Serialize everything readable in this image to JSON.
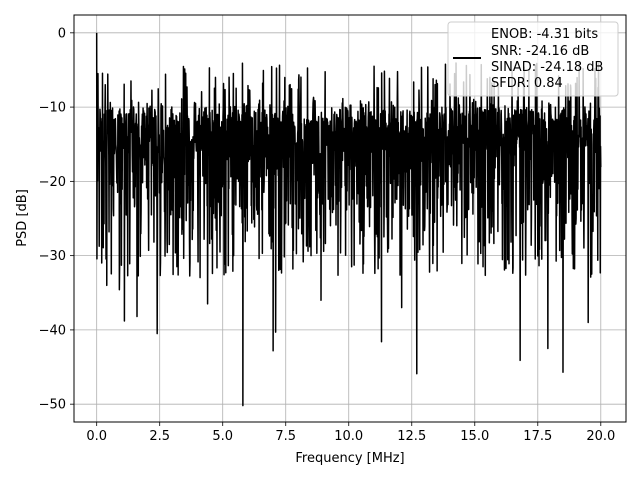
{
  "chart_data": {
    "type": "line",
    "xlabel": "Frequency [MHz]",
    "ylabel": "PSD [dB]",
    "xlim": [
      -0.9,
      21.0
    ],
    "ylim": [
      -52.4,
      2.4
    ],
    "xticks": [
      0.0,
      2.5,
      5.0,
      7.5,
      10.0,
      12.5,
      15.0,
      17.5,
      20.0
    ],
    "xtick_labels": [
      "0.0",
      "2.5",
      "5.0",
      "7.5",
      "10.0",
      "12.5",
      "15.0",
      "17.5",
      "20.0"
    ],
    "yticks": [
      0,
      -10,
      -20,
      -30,
      -40,
      -50
    ],
    "ytick_labels": [
      "0",
      "−10",
      "−20",
      "−30",
      "−40",
      "−50"
    ],
    "grid": true,
    "legend_position": "upper-right",
    "legend_entries": [
      "ENOB: -4.31 bits",
      "SNR: -24.16 dB",
      "SINAD: -24.18 dB",
      "SFDR: 0.84"
    ],
    "series": [
      {
        "color": "#000000",
        "x_range": [
          0.0,
          20.0
        ],
        "notable_points": [
          {
            "x": 0.0,
            "y": 0.0
          },
          {
            "x": 0.05,
            "y": -5.5
          },
          {
            "x": 0.08,
            "y": -17.0
          },
          {
            "x": 0.2,
            "y": -31.0
          },
          {
            "x": 0.4,
            "y": -34.0
          },
          {
            "x": 0.9,
            "y": -34.6
          },
          {
            "x": 1.1,
            "y": -38.8
          },
          {
            "x": 1.6,
            "y": -38.2
          },
          {
            "x": 2.4,
            "y": -40.5
          },
          {
            "x": 4.4,
            "y": -36.5
          },
          {
            "x": 5.8,
            "y": -50.2
          },
          {
            "x": 7.0,
            "y": -42.8
          },
          {
            "x": 7.1,
            "y": -40.3
          },
          {
            "x": 8.9,
            "y": -36.0
          },
          {
            "x": 11.3,
            "y": -41.6
          },
          {
            "x": 12.1,
            "y": -37.0
          },
          {
            "x": 12.7,
            "y": -45.9
          },
          {
            "x": 16.8,
            "y": -44.1
          },
          {
            "x": 17.9,
            "y": -42.5
          },
          {
            "x": 18.5,
            "y": -45.7
          },
          {
            "x": 19.5,
            "y": -39.0
          },
          {
            "x": 14.2,
            "y": -5.5
          },
          {
            "x": 15.6,
            "y": -6.0
          },
          {
            "x": 19.0,
            "y": -6.8
          }
        ],
        "typical_range": [
          -25,
          -10
        ]
      }
    ]
  }
}
